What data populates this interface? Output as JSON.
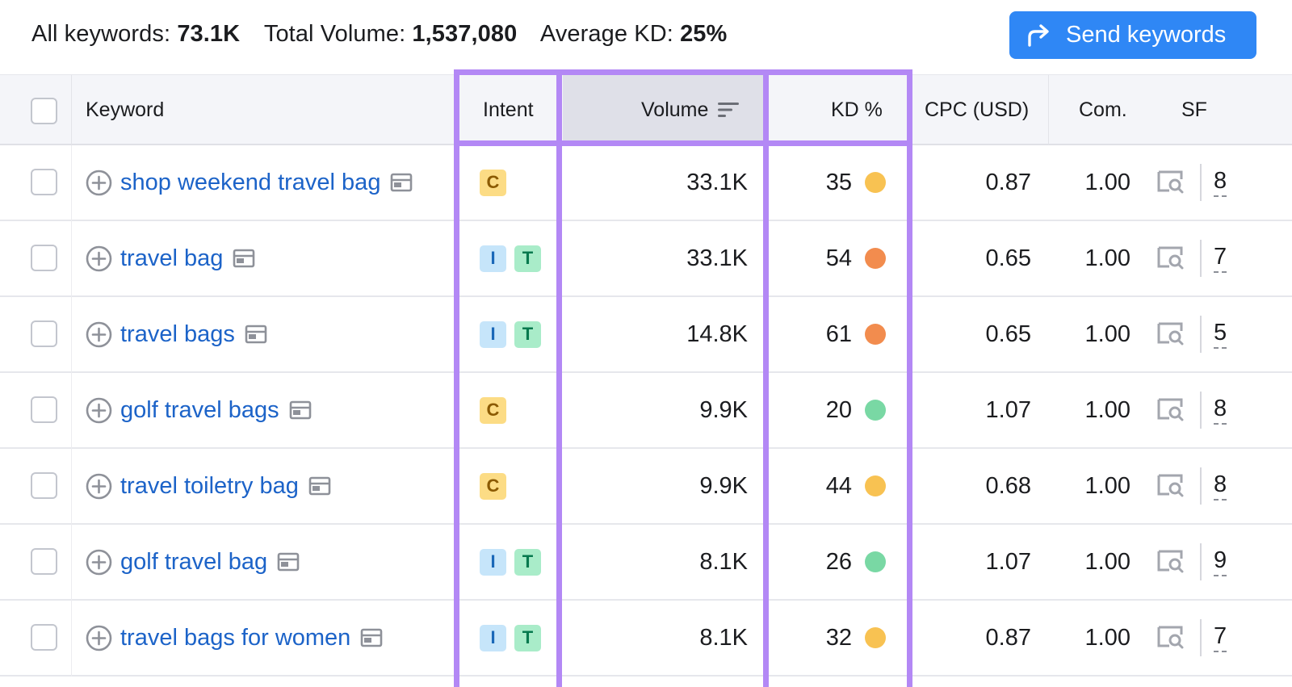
{
  "summary": {
    "all_keywords_label": "All keywords:",
    "all_keywords_value": "73.1K",
    "total_volume_label": "Total Volume:",
    "total_volume_value": "1,537,080",
    "avg_kd_label": "Average KD:",
    "avg_kd_value": "25%",
    "send_button_label": "Send keywords"
  },
  "columns": {
    "keyword": "Keyword",
    "intent": "Intent",
    "volume": "Volume",
    "kd": "KD %",
    "cpc": "CPC (USD)",
    "com": "Com.",
    "sf": "SF"
  },
  "colors": {
    "accent": "#2f87f5",
    "highlight": "#b388f5",
    "kd_yellow": "#f8c252",
    "kd_orange": "#f28c4e",
    "kd_green": "#79d8a4"
  },
  "rows": [
    {
      "keyword": "shop weekend travel bag",
      "intent": [
        "C"
      ],
      "volume": "33.1K",
      "kd": "35",
      "kd_color": "#f8c252",
      "cpc": "0.87",
      "com": "1.00",
      "sf": "8"
    },
    {
      "keyword": "travel bag",
      "intent": [
        "I",
        "T"
      ],
      "volume": "33.1K",
      "kd": "54",
      "kd_color": "#f28c4e",
      "cpc": "0.65",
      "com": "1.00",
      "sf": "7"
    },
    {
      "keyword": "travel bags",
      "intent": [
        "I",
        "T"
      ],
      "volume": "14.8K",
      "kd": "61",
      "kd_color": "#f28c4e",
      "cpc": "0.65",
      "com": "1.00",
      "sf": "5"
    },
    {
      "keyword": "golf travel bags",
      "intent": [
        "C"
      ],
      "volume": "9.9K",
      "kd": "20",
      "kd_color": "#79d8a4",
      "cpc": "1.07",
      "com": "1.00",
      "sf": "8"
    },
    {
      "keyword": "travel toiletry bag",
      "intent": [
        "C"
      ],
      "volume": "9.9K",
      "kd": "44",
      "kd_color": "#f8c252",
      "cpc": "0.68",
      "com": "1.00",
      "sf": "8"
    },
    {
      "keyword": "golf travel bag",
      "intent": [
        "I",
        "T"
      ],
      "volume": "8.1K",
      "kd": "26",
      "kd_color": "#79d8a4",
      "cpc": "1.07",
      "com": "1.00",
      "sf": "9"
    },
    {
      "keyword": "travel bags for women",
      "intent": [
        "I",
        "T"
      ],
      "volume": "8.1K",
      "kd": "32",
      "kd_color": "#f8c252",
      "cpc": "0.87",
      "com": "1.00",
      "sf": "7"
    }
  ]
}
